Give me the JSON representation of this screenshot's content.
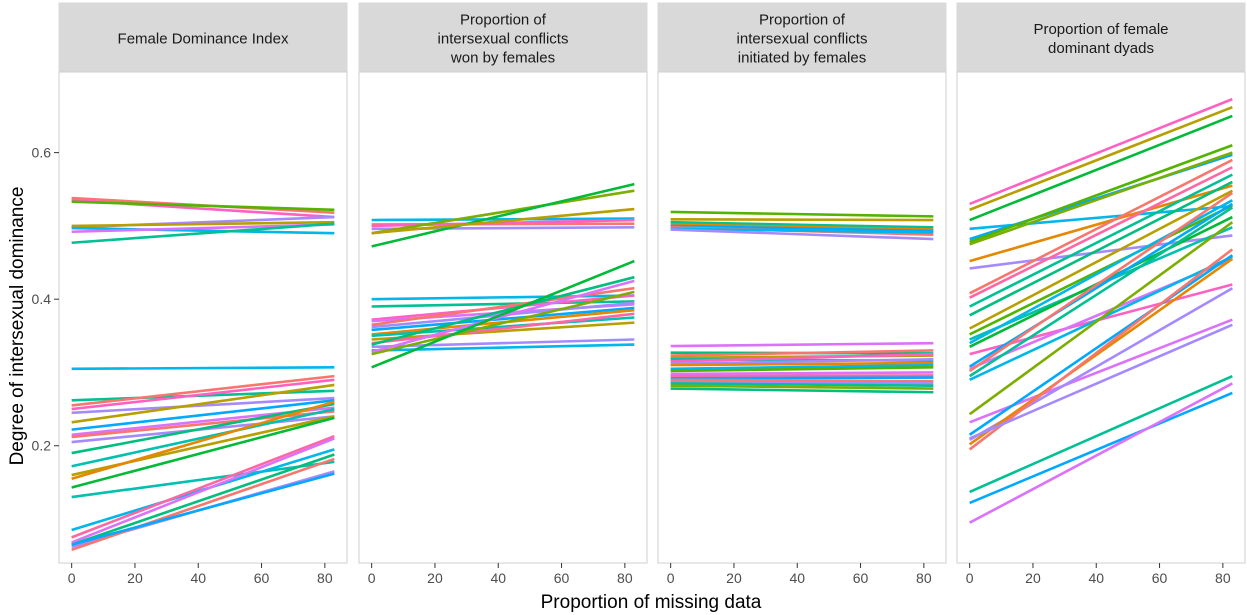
{
  "chart_data": {
    "type": "line",
    "title": "",
    "xlabel": "Proportion of missing data",
    "ylabel": "Degree of intersexual dominance",
    "xlim": [
      -4,
      87
    ],
    "ylim": [
      0.04,
      0.71
    ],
    "xticks": [
      0,
      20,
      40,
      60,
      80
    ],
    "xtick_labels": [
      "0",
      "20",
      "40",
      "60",
      "80"
    ],
    "yticks": [
      0.2,
      0.4,
      0.6
    ],
    "ytick_labels": [
      "0.2",
      "0.4",
      "0.6"
    ],
    "x_range": [
      0,
      83
    ],
    "grid": false,
    "legend": "none",
    "panels": [
      {
        "strip": [
          "Female Dominance Index"
        ],
        "series": [
          {
            "color": "#F8766D",
            "start": 0.538,
            "end": 0.518
          },
          {
            "color": "#FF61C3",
            "start": 0.535,
            "end": 0.512
          },
          {
            "color": "#53B400",
            "start": 0.533,
            "end": 0.522
          },
          {
            "color": "#A58AFF",
            "start": 0.498,
            "end": 0.512
          },
          {
            "color": "#B79F00",
            "start": 0.5,
            "end": 0.505
          },
          {
            "color": "#00B6EB",
            "start": 0.497,
            "end": 0.49
          },
          {
            "color": "#DB72FB",
            "start": 0.492,
            "end": 0.502
          },
          {
            "color": "#00C094",
            "start": 0.477,
            "end": 0.503
          },
          {
            "color": "#00B6EB",
            "start": 0.305,
            "end": 0.307
          },
          {
            "color": "#00C094",
            "start": 0.262,
            "end": 0.275
          },
          {
            "color": "#F8766D",
            "start": 0.255,
            "end": 0.295
          },
          {
            "color": "#FF61C3",
            "start": 0.25,
            "end": 0.29
          },
          {
            "color": "#A58AFF",
            "start": 0.245,
            "end": 0.265
          },
          {
            "color": "#B79F00",
            "start": 0.232,
            "end": 0.283
          },
          {
            "color": "#00A9FF",
            "start": 0.222,
            "end": 0.262
          },
          {
            "color": "#DB72FB",
            "start": 0.215,
            "end": 0.252
          },
          {
            "color": "#F8766D",
            "start": 0.212,
            "end": 0.247
          },
          {
            "color": "#A58AFF",
            "start": 0.205,
            "end": 0.24
          },
          {
            "color": "#00BF7D",
            "start": 0.19,
            "end": 0.257
          },
          {
            "color": "#00C0AF",
            "start": 0.172,
            "end": 0.25
          },
          {
            "color": "#B79F00",
            "start": 0.16,
            "end": 0.24
          },
          {
            "color": "#E58700",
            "start": 0.155,
            "end": 0.26
          },
          {
            "color": "#00BA38",
            "start": 0.143,
            "end": 0.238
          },
          {
            "color": "#00C0AF",
            "start": 0.13,
            "end": 0.178
          },
          {
            "color": "#00B6EB",
            "start": 0.085,
            "end": 0.195
          },
          {
            "color": "#FF67A4",
            "start": 0.075,
            "end": 0.213
          },
          {
            "color": "#DB72FB",
            "start": 0.068,
            "end": 0.21
          },
          {
            "color": "#00BF7D",
            "start": 0.065,
            "end": 0.188
          },
          {
            "color": "#A58AFF",
            "start": 0.062,
            "end": 0.165
          },
          {
            "color": "#F8766D",
            "start": 0.058,
            "end": 0.182
          },
          {
            "color": "#00A9FF",
            "start": 0.065,
            "end": 0.162
          }
        ]
      },
      {
        "strip": [
          "Proportion of",
          "intersexual conflicts",
          "won by females"
        ],
        "series": [
          {
            "color": "#00B6EB",
            "start": 0.508,
            "end": 0.51
          },
          {
            "color": "#F8766D",
            "start": 0.502,
            "end": 0.503
          },
          {
            "color": "#FF61C3",
            "start": 0.5,
            "end": 0.508
          },
          {
            "color": "#A58AFF",
            "start": 0.496,
            "end": 0.498
          },
          {
            "color": "#7CAE00",
            "start": 0.49,
            "end": 0.548
          },
          {
            "color": "#00BA38",
            "start": 0.472,
            "end": 0.557
          },
          {
            "color": "#B79F00",
            "start": 0.49,
            "end": 0.523
          },
          {
            "color": "#00B6EB",
            "start": 0.4,
            "end": 0.405
          },
          {
            "color": "#00C094",
            "start": 0.39,
            "end": 0.397
          },
          {
            "color": "#FF61C3",
            "start": 0.372,
            "end": 0.405
          },
          {
            "color": "#DB72FB",
            "start": 0.37,
            "end": 0.393
          },
          {
            "color": "#F8766D",
            "start": 0.365,
            "end": 0.415
          },
          {
            "color": "#A58AFF",
            "start": 0.362,
            "end": 0.395
          },
          {
            "color": "#00A9FF",
            "start": 0.358,
            "end": 0.388
          },
          {
            "color": "#E58700",
            "start": 0.352,
            "end": 0.385
          },
          {
            "color": "#00C0AF",
            "start": 0.35,
            "end": 0.375
          },
          {
            "color": "#B79F00",
            "start": 0.345,
            "end": 0.368
          },
          {
            "color": "#FF67A4",
            "start": 0.34,
            "end": 0.38
          },
          {
            "color": "#00BF7D",
            "start": 0.338,
            "end": 0.43
          },
          {
            "color": "#A58AFF",
            "start": 0.335,
            "end": 0.345
          },
          {
            "color": "#00B6EB",
            "start": 0.33,
            "end": 0.338
          },
          {
            "color": "#DB72FB",
            "start": 0.328,
            "end": 0.425
          },
          {
            "color": "#7CAE00",
            "start": 0.325,
            "end": 0.41
          },
          {
            "color": "#00BA38",
            "start": 0.307,
            "end": 0.452
          }
        ]
      },
      {
        "strip": [
          "Proportion of",
          "intersexual conflicts",
          "initiated by females"
        ],
        "series": [
          {
            "color": "#53B400",
            "start": 0.519,
            "end": 0.513
          },
          {
            "color": "#B79F00",
            "start": 0.509,
            "end": 0.508
          },
          {
            "color": "#00C094",
            "start": 0.505,
            "end": 0.498
          },
          {
            "color": "#E58700",
            "start": 0.502,
            "end": 0.495
          },
          {
            "color": "#00A9FF",
            "start": 0.5,
            "end": 0.493
          },
          {
            "color": "#F8766D",
            "start": 0.498,
            "end": 0.488
          },
          {
            "color": "#00B6EB",
            "start": 0.496,
            "end": 0.491
          },
          {
            "color": "#A58AFF",
            "start": 0.495,
            "end": 0.482
          },
          {
            "color": "#DB72FB",
            "start": 0.336,
            "end": 0.34
          },
          {
            "color": "#00BF7D",
            "start": 0.327,
            "end": 0.326
          },
          {
            "color": "#F8766D",
            "start": 0.323,
            "end": 0.33
          },
          {
            "color": "#B79F00",
            "start": 0.32,
            "end": 0.323
          },
          {
            "color": "#00C0AF",
            "start": 0.318,
            "end": 0.316
          },
          {
            "color": "#FF61C3",
            "start": 0.315,
            "end": 0.325
          },
          {
            "color": "#A58AFF",
            "start": 0.312,
            "end": 0.318
          },
          {
            "color": "#E58700",
            "start": 0.31,
            "end": 0.313
          },
          {
            "color": "#00B6EB",
            "start": 0.305,
            "end": 0.31
          },
          {
            "color": "#53B400",
            "start": 0.302,
            "end": 0.307
          },
          {
            "color": "#DB72FB",
            "start": 0.298,
            "end": 0.3
          },
          {
            "color": "#FF67A4",
            "start": 0.295,
            "end": 0.296
          },
          {
            "color": "#00A9FF",
            "start": 0.292,
            "end": 0.293
          },
          {
            "color": "#F8766D",
            "start": 0.29,
            "end": 0.288
          },
          {
            "color": "#A58AFF",
            "start": 0.287,
            "end": 0.285
          },
          {
            "color": "#00C094",
            "start": 0.285,
            "end": 0.282
          },
          {
            "color": "#7CAE00",
            "start": 0.282,
            "end": 0.278
          },
          {
            "color": "#00BF7D",
            "start": 0.278,
            "end": 0.273
          }
        ]
      },
      {
        "strip": [
          "Proportion of female",
          "dominant dyads"
        ],
        "series": [
          {
            "color": "#FF61C3",
            "start": 0.53,
            "end": 0.673
          },
          {
            "color": "#B79F00",
            "start": 0.522,
            "end": 0.662
          },
          {
            "color": "#00BA38",
            "start": 0.508,
            "end": 0.65
          },
          {
            "color": "#00B6EB",
            "start": 0.496,
            "end": 0.527
          },
          {
            "color": "#00A9FF",
            "start": 0.482,
            "end": 0.597
          },
          {
            "color": "#53B400",
            "start": 0.478,
            "end": 0.61
          },
          {
            "color": "#7CAE00",
            "start": 0.475,
            "end": 0.6
          },
          {
            "color": "#E58700",
            "start": 0.452,
            "end": 0.555
          },
          {
            "color": "#A58AFF",
            "start": 0.442,
            "end": 0.487
          },
          {
            "color": "#F8766D",
            "start": 0.408,
            "end": 0.59
          },
          {
            "color": "#FF67A4",
            "start": 0.402,
            "end": 0.58
          },
          {
            "color": "#00C094",
            "start": 0.39,
            "end": 0.57
          },
          {
            "color": "#00BF7D",
            "start": 0.378,
            "end": 0.56
          },
          {
            "color": "#B79F00",
            "start": 0.36,
            "end": 0.548
          },
          {
            "color": "#53B400",
            "start": 0.352,
            "end": 0.528
          },
          {
            "color": "#00C0AF",
            "start": 0.345,
            "end": 0.498
          },
          {
            "color": "#00B6EB",
            "start": 0.34,
            "end": 0.535
          },
          {
            "color": "#00BA38",
            "start": 0.335,
            "end": 0.512
          },
          {
            "color": "#FF61C3",
            "start": 0.325,
            "end": 0.42
          },
          {
            "color": "#00A9FF",
            "start": 0.308,
            "end": 0.53
          },
          {
            "color": "#DB72FB",
            "start": 0.305,
            "end": 0.455
          },
          {
            "color": "#F8766D",
            "start": 0.302,
            "end": 0.545
          },
          {
            "color": "#00C094",
            "start": 0.295,
            "end": 0.525
          },
          {
            "color": "#00B6EB",
            "start": 0.29,
            "end": 0.458
          },
          {
            "color": "#7CAE00",
            "start": 0.243,
            "end": 0.505
          },
          {
            "color": "#DB72FB",
            "start": 0.232,
            "end": 0.372
          },
          {
            "color": "#00A9FF",
            "start": 0.215,
            "end": 0.46
          },
          {
            "color": "#A58AFF",
            "start": 0.208,
            "end": 0.415
          },
          {
            "color": "#E58700",
            "start": 0.202,
            "end": 0.455
          },
          {
            "color": "#F8766D",
            "start": 0.195,
            "end": 0.468
          },
          {
            "color": "#A58AFF",
            "start": 0.21,
            "end": 0.365
          },
          {
            "color": "#00C094",
            "start": 0.137,
            "end": 0.295
          },
          {
            "color": "#00A9FF",
            "start": 0.122,
            "end": 0.272
          },
          {
            "color": "#DB72FB",
            "start": 0.095,
            "end": 0.285
          }
        ]
      }
    ]
  }
}
